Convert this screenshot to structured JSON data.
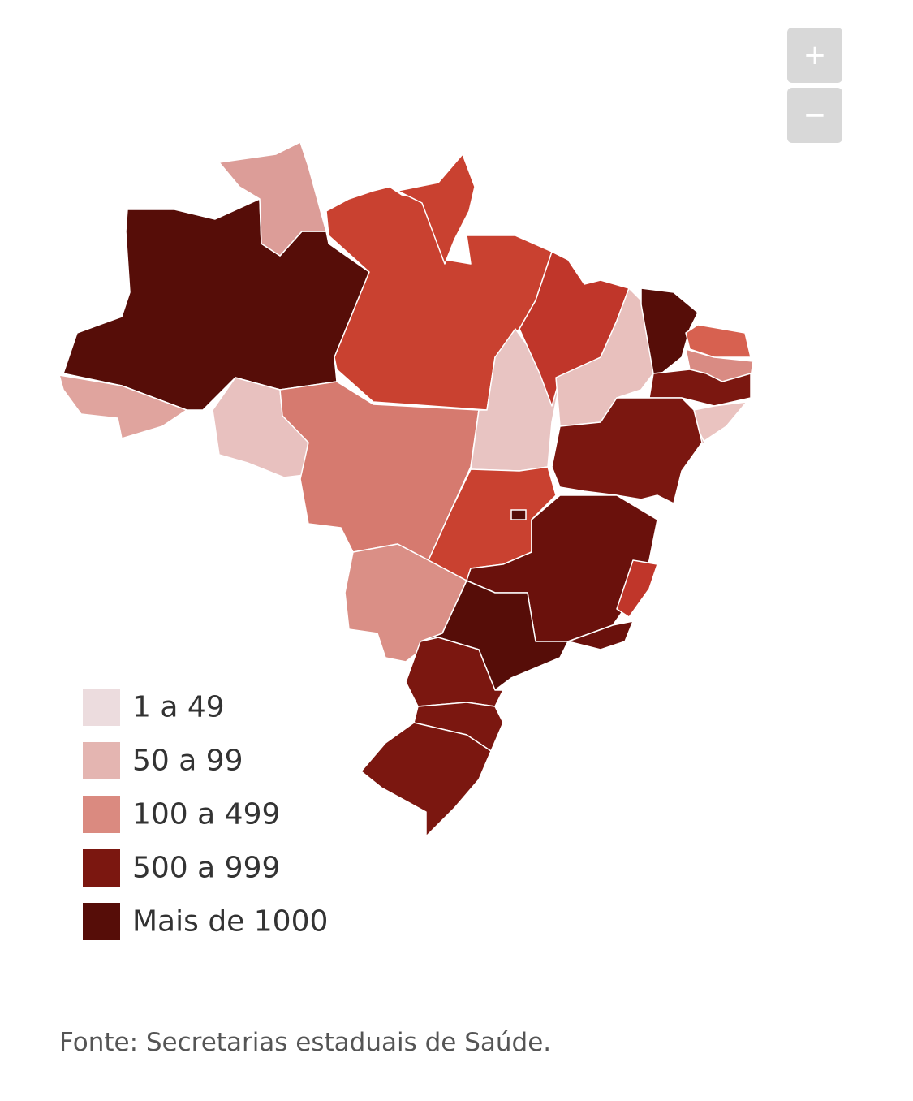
{
  "zoom": {
    "in": "+",
    "out": "−"
  },
  "legend": [
    {
      "label": "1 a 49",
      "color": "#ecdcde"
    },
    {
      "label": "50 a 99",
      "color": "#e4b5b1"
    },
    {
      "label": "100 a 499",
      "color": "#da8a80"
    },
    {
      "label": "500 a 999",
      "color": "#7b1710"
    },
    {
      "label": "Mais de 1000",
      "color": "#560d08"
    }
  ],
  "source": "Fonte: Secretarias estaduais de Saúde."
}
